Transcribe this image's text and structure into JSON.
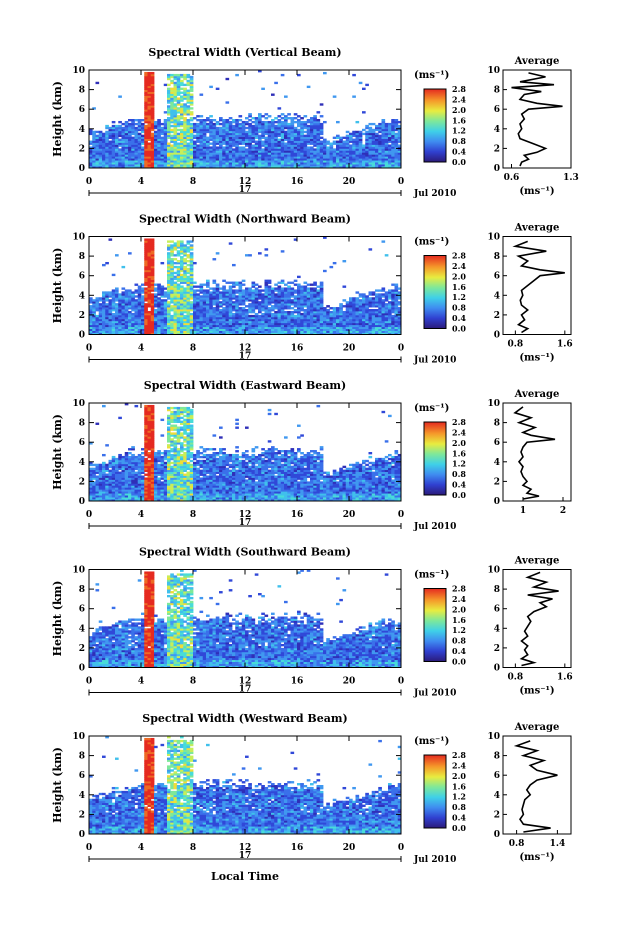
{
  "chart_data": [
    {
      "type": "heatmap",
      "title": "Spectral Width (Vertical Beam)",
      "ylabel": "Height (km)",
      "xlim": [
        0,
        24
      ],
      "ylim": [
        0,
        10
      ],
      "x_ticks": [
        "0",
        "4",
        "8",
        "12",
        "16",
        "20",
        "0"
      ],
      "y_ticks": [
        "0",
        "2",
        "4",
        "6",
        "8",
        "10"
      ],
      "date_labels": {
        "day": "17",
        "month_year": "Jul 2010"
      },
      "colorbar": {
        "unit": "(ms⁻¹)",
        "range": [
          0,
          2.8
        ],
        "ticks": [
          "0.0",
          "0.4",
          "0.8",
          "1.2",
          "1.6",
          "2.0",
          "2.4",
          "2.8"
        ]
      },
      "average_profile": {
        "title": "Average",
        "xlabel": "(ms⁻¹)",
        "xlim": [
          0.5,
          1.3
        ],
        "x_ticks": [
          "0.6",
          "1.3"
        ],
        "y_ticks": [
          "0",
          "2",
          "4",
          "6",
          "8",
          "10"
        ],
        "points": [
          [
            0.7,
            0.2
          ],
          [
            0.72,
            0.6
          ],
          [
            0.8,
            0.9
          ],
          [
            0.75,
            1.3
          ],
          [
            0.9,
            1.6
          ],
          [
            1.0,
            2.0
          ],
          [
            0.85,
            2.5
          ],
          [
            0.7,
            3.0
          ],
          [
            0.68,
            3.5
          ],
          [
            0.72,
            4.0
          ],
          [
            0.7,
            4.5
          ],
          [
            0.75,
            5.0
          ],
          [
            0.72,
            5.5
          ],
          [
            0.8,
            6.0
          ],
          [
            1.2,
            6.3
          ],
          [
            0.9,
            6.6
          ],
          [
            0.7,
            7.0
          ],
          [
            0.75,
            7.5
          ],
          [
            0.95,
            7.8
          ],
          [
            0.6,
            8.2
          ],
          [
            1.1,
            8.5
          ],
          [
            0.7,
            8.8
          ],
          [
            1.0,
            9.3
          ],
          [
            0.8,
            9.7
          ]
        ]
      }
    },
    {
      "type": "heatmap",
      "title": "Spectral Width (Northward Beam)",
      "ylabel": "Height (km)",
      "xlim": [
        0,
        24
      ],
      "ylim": [
        0,
        10
      ],
      "x_ticks": [
        "0",
        "4",
        "8",
        "12",
        "16",
        "20",
        "0"
      ],
      "y_ticks": [
        "0",
        "2",
        "4",
        "6",
        "8",
        "10"
      ],
      "date_labels": {
        "day": "17",
        "month_year": "Jul 2010"
      },
      "colorbar": {
        "unit": "(ms⁻¹)",
        "range": [
          0,
          2.8
        ],
        "ticks": [
          "0.0",
          "0.4",
          "0.8",
          "1.2",
          "1.6",
          "2.0",
          "2.4",
          "2.8"
        ]
      },
      "average_profile": {
        "title": "Average",
        "xlabel": "(ms⁻¹)",
        "xlim": [
          0.6,
          1.7
        ],
        "x_ticks": [
          "0.8",
          "1.6"
        ],
        "y_ticks": [
          "0",
          "2",
          "4",
          "6",
          "8",
          "10"
        ],
        "points": [
          [
            0.9,
            0.2
          ],
          [
            1.0,
            0.6
          ],
          [
            0.85,
            1.0
          ],
          [
            0.95,
            1.5
          ],
          [
            0.9,
            2.0
          ],
          [
            1.0,
            2.5
          ],
          [
            0.9,
            3.0
          ],
          [
            0.88,
            3.5
          ],
          [
            0.92,
            4.0
          ],
          [
            0.9,
            4.5
          ],
          [
            1.0,
            5.0
          ],
          [
            1.1,
            5.5
          ],
          [
            1.2,
            6.0
          ],
          [
            1.6,
            6.3
          ],
          [
            1.2,
            6.6
          ],
          [
            0.9,
            7.0
          ],
          [
            1.0,
            7.5
          ],
          [
            0.85,
            8.0
          ],
          [
            1.3,
            8.5
          ],
          [
            0.8,
            9.0
          ],
          [
            1.0,
            9.5
          ]
        ]
      }
    },
    {
      "type": "heatmap",
      "title": "Spectral Width (Eastward Beam)",
      "ylabel": "Height (km)",
      "xlim": [
        0,
        24
      ],
      "ylim": [
        0,
        10
      ],
      "x_ticks": [
        "0",
        "4",
        "8",
        "12",
        "16",
        "20",
        "0"
      ],
      "y_ticks": [
        "0",
        "2",
        "4",
        "6",
        "8",
        "10"
      ],
      "date_labels": {
        "day": "17",
        "month_year": "Jul 2010"
      },
      "colorbar": {
        "unit": "(ms⁻¹)",
        "range": [
          0,
          2.8
        ],
        "ticks": [
          "0.0",
          "0.4",
          "0.8",
          "1.2",
          "1.6",
          "2.0",
          "2.4",
          "2.8"
        ]
      },
      "average_profile": {
        "title": "Average",
        "xlabel": "",
        "xlim": [
          0.5,
          2.2
        ],
        "x_ticks": [
          "1",
          "2"
        ],
        "y_ticks": [
          "0",
          "2",
          "4",
          "6",
          "8",
          "10"
        ],
        "points": [
          [
            1.0,
            0.2
          ],
          [
            1.4,
            0.5
          ],
          [
            1.1,
            0.8
          ],
          [
            1.2,
            1.2
          ],
          [
            1.0,
            1.6
          ],
          [
            1.1,
            2.0
          ],
          [
            1.0,
            2.5
          ],
          [
            0.95,
            3.0
          ],
          [
            1.0,
            3.5
          ],
          [
            0.9,
            4.0
          ],
          [
            1.0,
            4.5
          ],
          [
            0.95,
            5.0
          ],
          [
            1.0,
            5.5
          ],
          [
            1.1,
            6.0
          ],
          [
            1.8,
            6.3
          ],
          [
            1.2,
            6.7
          ],
          [
            1.0,
            7.0
          ],
          [
            1.3,
            7.5
          ],
          [
            0.9,
            8.0
          ],
          [
            1.2,
            8.5
          ],
          [
            0.8,
            9.0
          ],
          [
            1.0,
            9.6
          ]
        ]
      }
    },
    {
      "type": "heatmap",
      "title": "Spectral Width (Southward Beam)",
      "ylabel": "Height (km)",
      "xlim": [
        0,
        24
      ],
      "ylim": [
        0,
        10
      ],
      "x_ticks": [
        "0",
        "4",
        "8",
        "12",
        "16",
        "20",
        "0"
      ],
      "y_ticks": [
        "0",
        "2",
        "4",
        "6",
        "8",
        "10"
      ],
      "date_labels": {
        "day": "17",
        "month_year": "Jul 2010"
      },
      "colorbar": {
        "unit": "(ms⁻¹)",
        "range": [
          0,
          2.8
        ],
        "ticks": [
          "0.0",
          "0.4",
          "0.8",
          "1.2",
          "1.6",
          "2.0",
          "2.4",
          "2.8"
        ]
      },
      "average_profile": {
        "title": "Average",
        "xlabel": "(ms⁻¹)",
        "xlim": [
          0.6,
          1.7
        ],
        "x_ticks": [
          "0.8",
          "1.6"
        ],
        "y_ticks": [
          "0",
          "2",
          "4",
          "6",
          "8",
          "10"
        ],
        "points": [
          [
            0.9,
            0.2
          ],
          [
            1.1,
            0.5
          ],
          [
            0.9,
            0.9
          ],
          [
            1.0,
            1.3
          ],
          [
            0.95,
            1.8
          ],
          [
            1.0,
            2.2
          ],
          [
            0.9,
            2.7
          ],
          [
            1.0,
            3.2
          ],
          [
            0.95,
            3.7
          ],
          [
            1.0,
            4.2
          ],
          [
            1.05,
            4.7
          ],
          [
            1.0,
            5.2
          ],
          [
            1.1,
            5.7
          ],
          [
            1.3,
            6.2
          ],
          [
            1.2,
            6.6
          ],
          [
            1.4,
            7.0
          ],
          [
            1.0,
            7.4
          ],
          [
            1.5,
            7.8
          ],
          [
            1.1,
            8.2
          ],
          [
            1.3,
            8.7
          ],
          [
            1.0,
            9.2
          ],
          [
            1.2,
            9.7
          ]
        ]
      }
    },
    {
      "type": "heatmap",
      "title": "Spectral Width (Westward Beam)",
      "ylabel": "Height (km)",
      "xlabel": "Local Time",
      "xlim": [
        0,
        24
      ],
      "ylim": [
        0,
        10
      ],
      "x_ticks": [
        "0",
        "4",
        "8",
        "12",
        "16",
        "20",
        "0"
      ],
      "y_ticks": [
        "0",
        "2",
        "4",
        "6",
        "8",
        "10"
      ],
      "date_labels": {
        "day": "17",
        "month_year": "Jul 2010"
      },
      "colorbar": {
        "unit": "(ms⁻¹)",
        "range": [
          0,
          2.8
        ],
        "ticks": [
          "0.0",
          "0.4",
          "0.8",
          "1.2",
          "1.6",
          "2.0",
          "2.4",
          "2.8"
        ]
      },
      "average_profile": {
        "title": "Average",
        "xlabel": "(ms⁻¹)",
        "xlim": [
          0.6,
          1.6
        ],
        "x_ticks": [
          "0.8",
          "1.4"
        ],
        "y_ticks": [
          "0",
          "2",
          "4",
          "6",
          "8",
          "10"
        ],
        "points": [
          [
            0.9,
            0.2
          ],
          [
            1.3,
            0.6
          ],
          [
            0.9,
            1.0
          ],
          [
            0.85,
            1.5
          ],
          [
            0.9,
            2.0
          ],
          [
            0.88,
            2.5
          ],
          [
            0.9,
            3.0
          ],
          [
            0.92,
            3.5
          ],
          [
            1.0,
            4.0
          ],
          [
            0.95,
            4.5
          ],
          [
            1.0,
            5.0
          ],
          [
            1.1,
            5.5
          ],
          [
            1.4,
            6.0
          ],
          [
            1.1,
            6.5
          ],
          [
            1.0,
            7.0
          ],
          [
            1.2,
            7.5
          ],
          [
            0.9,
            8.0
          ],
          [
            1.1,
            8.5
          ],
          [
            0.8,
            9.0
          ],
          [
            1.0,
            9.5
          ]
        ]
      }
    }
  ]
}
